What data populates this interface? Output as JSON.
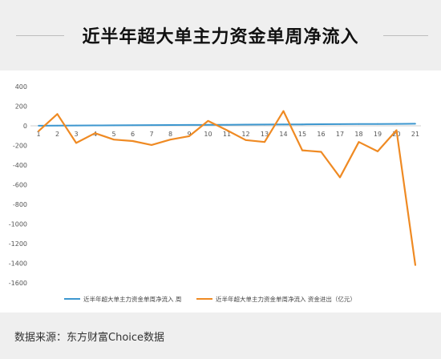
{
  "header": {
    "title": "近半年超大单主力资金单周净流入"
  },
  "source_text": "数据来源：东方财富Choice数据",
  "chart_data": {
    "type": "line",
    "title": "近半年超大单主力资金单周净流入",
    "x": [
      "1",
      "2",
      "3",
      "4",
      "5",
      "6",
      "7",
      "8",
      "9",
      "10",
      "11",
      "12",
      "13",
      "14",
      "15",
      "16",
      "17",
      "18",
      "19",
      "20",
      "21"
    ],
    "ylim": [
      -1600,
      400
    ],
    "yticks": [
      400,
      200,
      0,
      -200,
      -400,
      -600,
      -800,
      -1000,
      -1200,
      -1400,
      -1600
    ],
    "grid": false,
    "legend_position": "bottom",
    "series": [
      {
        "name": "近半年超大单主力资金单周净流入 周",
        "color": "#3d97cf",
        "values": [
          1,
          2,
          3,
          4,
          5,
          6,
          7,
          8,
          9,
          10,
          11,
          12,
          13,
          14,
          15,
          16,
          17,
          18,
          19,
          20,
          21
        ]
      },
      {
        "name": "近半年超大单主力资金单周净流入 资金进出（亿元）",
        "color": "#ef8a23",
        "values": [
          -55,
          120,
          -175,
          -75,
          -140,
          -155,
          -195,
          -140,
          -105,
          50,
          -45,
          -145,
          -165,
          150,
          -250,
          -265,
          -525,
          -165,
          -260,
          -45,
          -1420
        ]
      }
    ]
  }
}
